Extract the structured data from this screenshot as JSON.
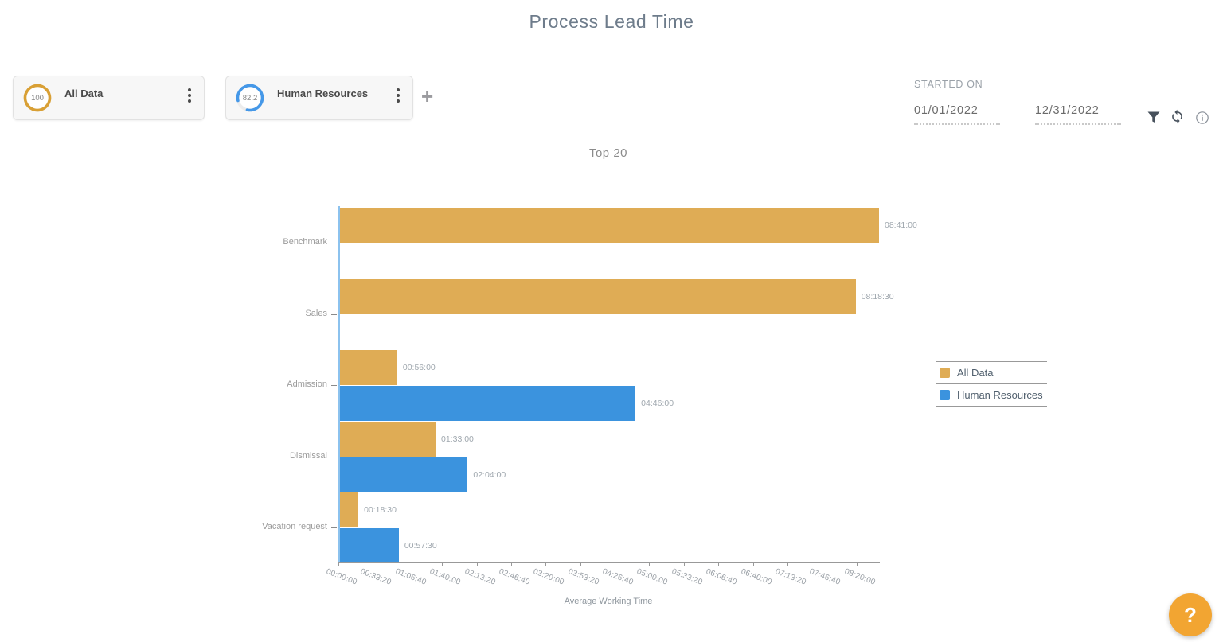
{
  "header": {
    "title": "Process Lead Time"
  },
  "filters": {
    "chips": [
      {
        "label": "All Data",
        "value": "100",
        "percent": 100,
        "color": "#d9a035"
      },
      {
        "label": "Human Resources",
        "value": "82.2",
        "percent": 82.2,
        "color": "#4598e8"
      }
    ],
    "add_label": "+"
  },
  "date_filter": {
    "label": "STARTED ON",
    "start_date": "01/01/2022",
    "end_date": "12/31/2022",
    "icons": [
      "filter-icon",
      "refresh-icon",
      "info-icon"
    ]
  },
  "chart_data": {
    "type": "bar",
    "orientation": "horizontal",
    "title": "Top 20",
    "xlabel": "Average Working Time",
    "categories": [
      "Benchmark",
      "Sales",
      "Admission",
      "Dismissal",
      "Vacation request"
    ],
    "series": [
      {
        "name": "All Data",
        "color": "#dfac55",
        "values": [
          "08:41:00",
          "08:18:30",
          "00:56:00",
          "01:33:00",
          "00:18:30"
        ]
      },
      {
        "name": "Human Resources",
        "color": "#3b93de",
        "values": [
          null,
          null,
          "04:46:00",
          "02:04:00",
          "00:57:30"
        ]
      }
    ],
    "x_ticks": [
      "00:00:00",
      "00:33:20",
      "01:06:40",
      "01:40:00",
      "02:13:20",
      "02:46:40",
      "03:20:00",
      "03:53:20",
      "04:26:40",
      "05:00:00",
      "05:33:20",
      "06:06:40",
      "06:40:00",
      "07:13:20",
      "07:46:40",
      "08:20:00"
    ],
    "x_tick_interval_seconds": 2000,
    "x_max": "08:41:00",
    "axis_color": "#8cc2ee",
    "grid": false,
    "legend_position": "right"
  },
  "help": {
    "label": "?"
  }
}
